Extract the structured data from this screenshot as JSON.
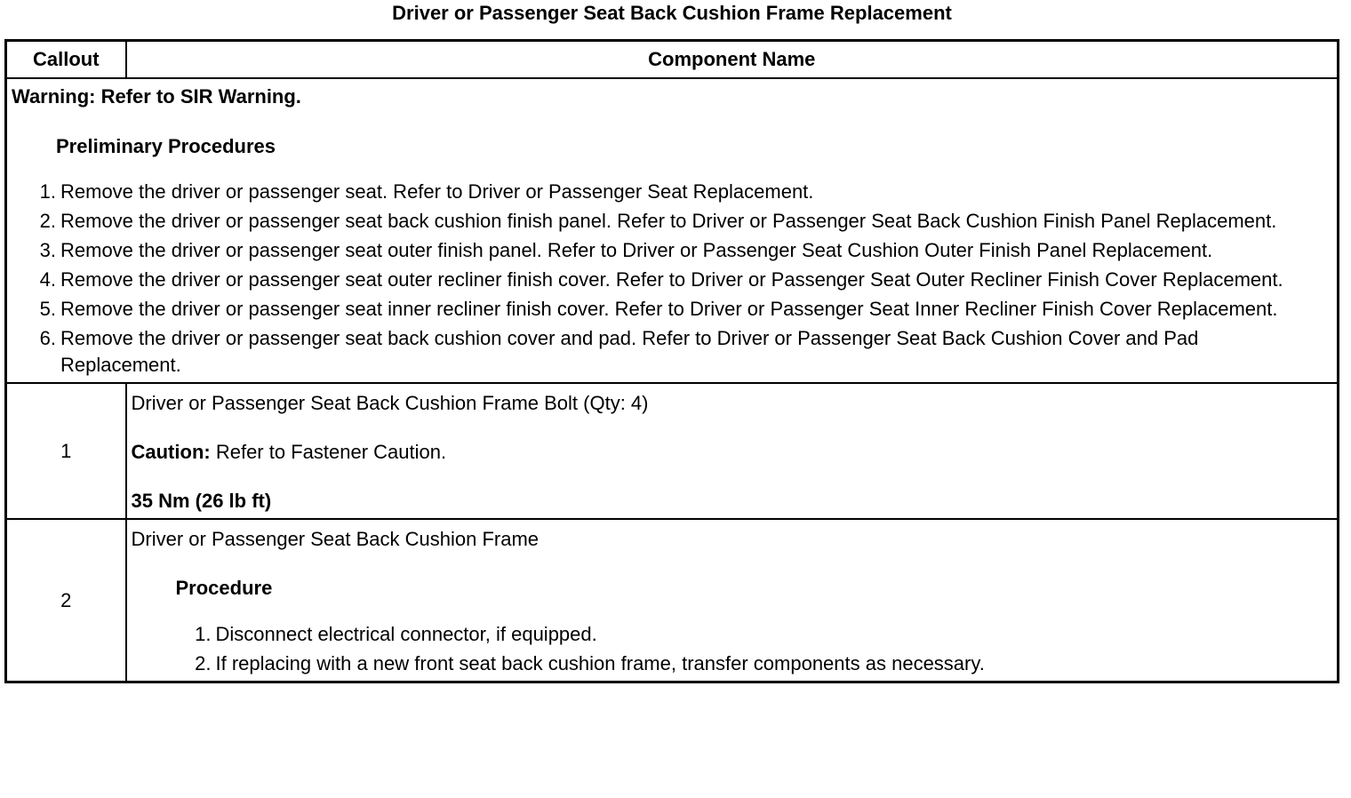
{
  "title": "Driver or Passenger Seat Back Cushion Frame Replacement",
  "table": {
    "headers": [
      "Callout",
      "Component Name"
    ],
    "warning": "Warning: Refer to SIR Warning.",
    "preliminary": {
      "heading": "Preliminary Procedures",
      "steps": [
        {
          "number": "1.",
          "text": "Remove the driver or passenger seat. Refer to Driver or Passenger Seat Replacement."
        },
        {
          "number": "2.",
          "text": "Remove the driver or passenger seat back cushion finish panel. Refer to Driver or Passenger Seat Back Cushion Finish Panel Replacement."
        },
        {
          "number": "3.",
          "text": "Remove the driver or passenger seat outer finish panel. Refer to Driver or Passenger Seat Cushion Outer Finish Panel Replacement."
        },
        {
          "number": "4.",
          "text": "Remove the driver or passenger seat outer recliner finish cover. Refer to Driver or Passenger Seat Outer Recliner Finish Cover Replacement."
        },
        {
          "number": "5.",
          "text": "Remove the driver or passenger seat inner recliner finish cover. Refer to Driver or Passenger Seat Inner Recliner Finish Cover Replacement."
        },
        {
          "number": "6.",
          "text": "Remove the driver or passenger seat back cushion cover and pad. Refer to Driver or Passenger Seat Back Cushion Cover and Pad Replacement."
        }
      ]
    },
    "rows": [
      {
        "callout": "1",
        "component": "Driver or Passenger Seat Back Cushion Frame Bolt (Qty: 4)",
        "caution_label": "Caution:",
        "caution_text": "Refer to Fastener Caution.",
        "torque": "35 Nm (26 lb ft)"
      },
      {
        "callout": "2",
        "component": "Driver or Passenger Seat Back Cushion Frame",
        "procedure": {
          "heading": "Procedure",
          "steps": [
            {
              "number": "1.",
              "text": "Disconnect electrical connector, if equipped."
            },
            {
              "number": "2.",
              "text": "If replacing with a new front seat back cushion frame, transfer components as necessary."
            }
          ]
        }
      }
    ]
  }
}
